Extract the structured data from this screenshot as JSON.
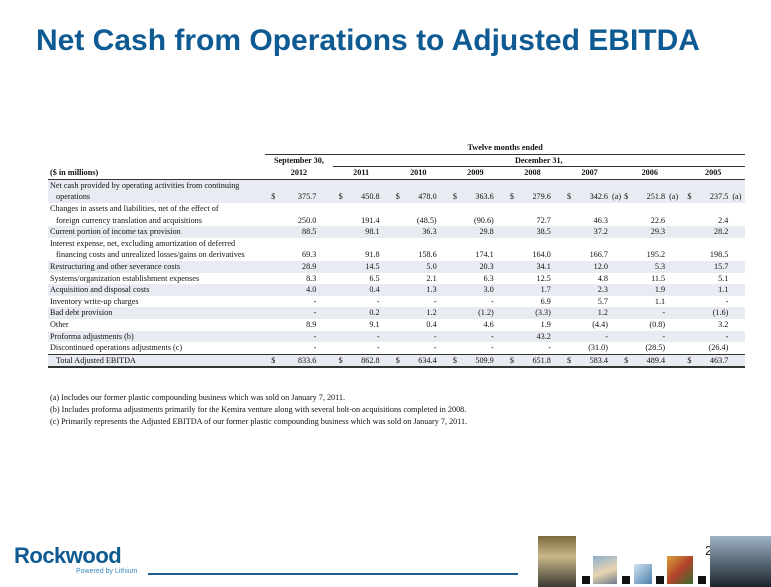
{
  "title": "Net Cash from Operations to Adjusted EBITDA",
  "page_number": "26",
  "logo": {
    "name": "Rockwood",
    "tagline": "Powered by Lithium"
  },
  "table": {
    "group_header": "Twelve months ended",
    "period_headers": [
      "September 30,",
      "December 31,"
    ],
    "units_label": "($ in millions)",
    "years": [
      "2012",
      "2011",
      "2010",
      "2009",
      "2008",
      "2007",
      "2006",
      "2005"
    ],
    "rows": [
      {
        "label": "Net cash provided by operating activities from continuing",
        "shaded": true,
        "values": null
      },
      {
        "label": "operations",
        "indent": true,
        "shaded": true,
        "dollar": true,
        "values": [
          "375.7",
          "450.8",
          "478.0",
          "363.6",
          "279.6",
          "342.6",
          "251.8",
          "237.5"
        ],
        "notes": [
          "",
          "",
          "",
          "",
          "",
          "(a)",
          "(a)",
          "(a)"
        ]
      },
      {
        "label": "Changes in assets and liabilities, net of the effect of",
        "shaded": false,
        "values": null
      },
      {
        "label": "foreign currency translation and acquisitions",
        "indent": true,
        "shaded": false,
        "values": [
          "250.0",
          "191.4",
          "(48.5)",
          "(90.6)",
          "72.7",
          "46.3",
          "22.6",
          "2.4"
        ]
      },
      {
        "label": "Current portion of income tax provision",
        "shaded": true,
        "values": [
          "88.5",
          "98.1",
          "36.3",
          "29.8",
          "38.5",
          "37.2",
          "29.3",
          "28.2"
        ]
      },
      {
        "label": "Interest expense, net, excluding amortization of deferred",
        "shaded": false,
        "values": null
      },
      {
        "label": "financing costs and unrealized losses/gains on derivatives",
        "indent": true,
        "shaded": false,
        "values": [
          "69.3",
          "91.8",
          "158.6",
          "174.1",
          "164.0",
          "166.7",
          "195.2",
          "198.5"
        ]
      },
      {
        "label": "Restructuring and other severance costs",
        "shaded": true,
        "values": [
          "28.9",
          "14.5",
          "5.0",
          "20.3",
          "34.1",
          "12.0",
          "5.3",
          "15.7"
        ]
      },
      {
        "label": "Systems/organization establishment expenses",
        "shaded": false,
        "values": [
          "8.3",
          "6.5",
          "2.1",
          "6.3",
          "12.5",
          "4.8",
          "11.5",
          "5.1"
        ]
      },
      {
        "label": "Acquisition and disposal costs",
        "shaded": true,
        "values": [
          "4.0",
          "0.4",
          "1.3",
          "3.0",
          "1.7",
          "2.3",
          "1.9",
          "1.1"
        ]
      },
      {
        "label": "Inventory write-up charges",
        "shaded": false,
        "values": [
          "-",
          "-",
          "-",
          "-",
          "6.9",
          "5.7",
          "1.1",
          "-"
        ]
      },
      {
        "label": "Bad debt provision",
        "shaded": true,
        "values": [
          "-",
          "0.2",
          "1.2",
          "(1.2)",
          "(3.3)",
          "1.2",
          "-",
          "(1.6)"
        ]
      },
      {
        "label": "Other",
        "shaded": false,
        "values": [
          "8.9",
          "9.1",
          "0.4",
          "4.6",
          "1.9",
          "(4.4)",
          "(0.8)",
          "3.2"
        ]
      },
      {
        "label": "Proforma adjustments (b)",
        "shaded": true,
        "values": [
          "-",
          "-",
          "-",
          "-",
          "43.2",
          "-",
          "-",
          "-"
        ]
      },
      {
        "label": "Discontinued operations adjustments (c)",
        "shaded": false,
        "values": [
          "-",
          "-",
          "-",
          "-",
          "-",
          "(31.0)",
          "(28.5)",
          "(26.4)"
        ]
      },
      {
        "label": "Total Adjusted EBITDA",
        "indent": true,
        "shaded": true,
        "total": true,
        "dollar": true,
        "values": [
          "833.6",
          "862.8",
          "634.4",
          "509.9",
          "651.8",
          "583.4",
          "489.4",
          "463.7"
        ]
      }
    ]
  },
  "footnotes": [
    "(a) Includes our former plastic compounding business which was sold on January 7, 2011.",
    "(b) Includes proforma adjustments primarily for the Kemira venture along with several bolt-on acquisitions completed in 2008.",
    "(c) Primarily represents the Adjusted EBITDA of our former plastic compounding  business which was sold on January 7, 2011."
  ],
  "colors": {
    "title": "#0e5a92",
    "row_shade": "#e8ecf2",
    "rule": "#1f5d8f"
  }
}
